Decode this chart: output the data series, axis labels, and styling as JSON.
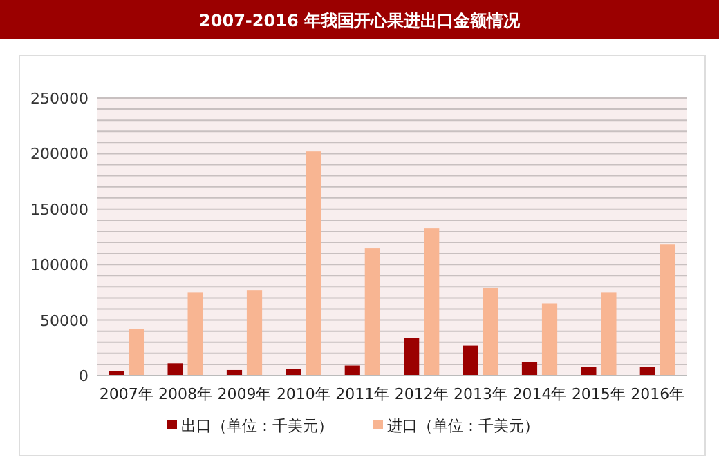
{
  "chart_data": {
    "type": "bar",
    "title": "2007-2016 年我国开心果进出口金额情况",
    "categories": [
      "2007年",
      "2008年",
      "2009年",
      "2010年",
      "2011年",
      "2012年",
      "2013年",
      "2014年",
      "2015年",
      "2016年"
    ],
    "series": [
      {
        "name": "出口（单位：千美元）",
        "color": "#9b0000",
        "values": [
          4000,
          11000,
          5000,
          6000,
          9000,
          34000,
          27000,
          12000,
          8000,
          8000
        ]
      },
      {
        "name": "进口（单位：千美元）",
        "color": "#f8b592",
        "values": [
          42000,
          75000,
          77000,
          202000,
          115000,
          133000,
          79000,
          65000,
          75000,
          118000
        ]
      }
    ],
    "ylim": [
      0,
      250000
    ],
    "yticks": [
      0,
      {
        "value": 10000,
        "label": null
      },
      {
        "value": 20000,
        "label": null
      },
      {
        "value": 30000,
        "label": null
      },
      {
        "value": 40000,
        "label": null
      },
      50000,
      {
        "value": 60000,
        "label": null
      },
      {
        "value": 70000,
        "label": null
      },
      {
        "value": 80000,
        "label": null
      },
      {
        "value": 90000,
        "label": null
      },
      100000,
      {
        "value": 110000,
        "label": null
      },
      {
        "value": 120000,
        "label": null
      },
      {
        "value": 130000,
        "label": null
      },
      {
        "value": 140000,
        "label": null
      },
      150000,
      {
        "value": 160000,
        "label": null
      },
      {
        "value": 170000,
        "label": null
      },
      {
        "value": 180000,
        "label": null
      },
      {
        "value": 190000,
        "label": null
      },
      200000,
      {
        "value": 210000,
        "label": null
      },
      {
        "value": 220000,
        "label": null
      },
      {
        "value": 230000,
        "label": null
      },
      {
        "value": 240000,
        "label": null
      },
      250000
    ],
    "grid": "y",
    "legend": "bottom"
  }
}
